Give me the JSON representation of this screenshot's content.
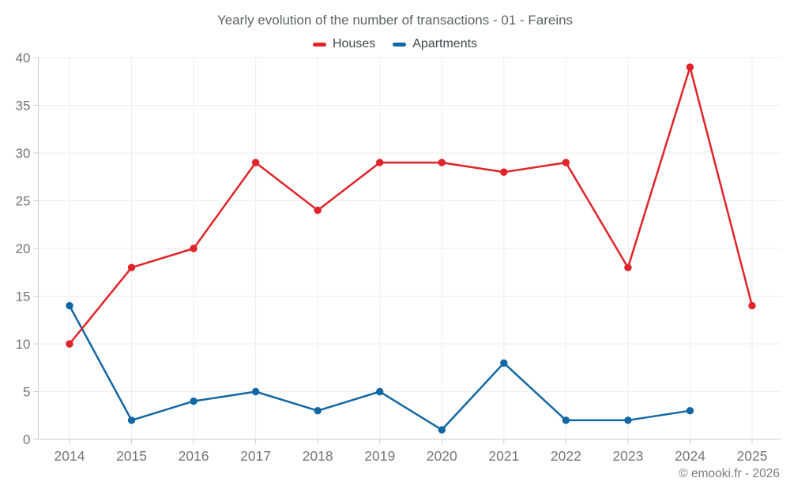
{
  "page": {
    "title": "Yearly evolution of the number of transactions - 01 - Fareins",
    "copyright": "© emooki.fr - 2026"
  },
  "legend": [
    {
      "label": "Houses",
      "color": "#e02429"
    },
    {
      "label": "Apartments",
      "color": "#1268a5"
    }
  ],
  "chart_data": {
    "type": "line",
    "title": "Yearly evolution of the number of transactions - 01 - Fareins",
    "categories": [
      "2014",
      "2015",
      "2016",
      "2017",
      "2018",
      "2019",
      "2020",
      "2021",
      "2022",
      "2023",
      "2024",
      "2025"
    ],
    "series": [
      {
        "name": "Houses",
        "color": "#e02429",
        "values": [
          10,
          18,
          20,
          29,
          24,
          29,
          29,
          28,
          29,
          18,
          39,
          14
        ]
      },
      {
        "name": "Apartments",
        "color": "#1268a5",
        "values": [
          14,
          2,
          4,
          5,
          3,
          5,
          1,
          8,
          2,
          2,
          3,
          null
        ]
      }
    ],
    "xlabel": "",
    "ylabel": "",
    "ylim": [
      0,
      40
    ],
    "ytick_step": 5,
    "grid": true,
    "legend_position": "top",
    "axis_colors": {
      "grid": "#ededed",
      "axis": "#c9cdd0",
      "tick_label": "#757575"
    }
  }
}
